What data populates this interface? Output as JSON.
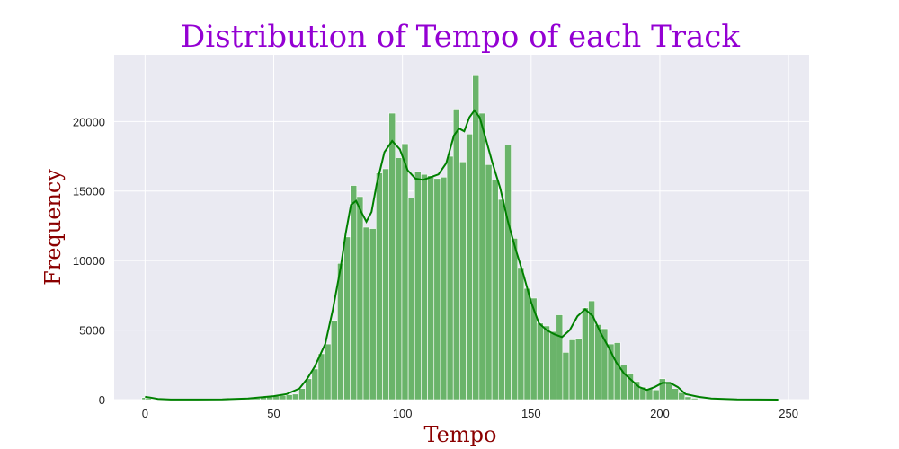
{
  "chart_data": {
    "type": "bar",
    "title": "Distribution of Tempo of each Track",
    "xlabel": "Tempo",
    "ylabel": "Frequency",
    "xlim": [
      -12,
      258
    ],
    "ylim": [
      0,
      24800
    ],
    "xticks": [
      0,
      50,
      100,
      150,
      200,
      250
    ],
    "yticks": [
      0,
      5000,
      10000,
      15000,
      20000
    ],
    "grid": true,
    "background": "#EAEAF2",
    "bar_color": "#6AB46A",
    "line_color": "#008000",
    "bin_width": 2.48,
    "x": [
      0,
      1.24,
      28.5,
      31,
      33.5,
      36,
      38.5,
      41,
      43.5,
      46,
      48.5,
      51,
      53.5,
      56,
      58.5,
      61,
      63.5,
      66,
      68.5,
      71,
      73.5,
      76,
      78.5,
      81,
      83.5,
      86,
      88.5,
      91,
      93.5,
      96,
      98.5,
      101,
      103.5,
      106,
      108.5,
      111,
      113.5,
      116,
      118.5,
      121,
      123.5,
      126,
      128.5,
      131,
      133.5,
      136,
      138.5,
      141,
      143.5,
      146,
      148.5,
      151,
      153.5,
      156,
      158.5,
      161,
      163.5,
      166,
      168.5,
      171,
      173.5,
      176,
      178.5,
      181,
      183.5,
      186,
      188.5,
      191,
      193.5,
      196,
      198.5,
      201,
      203.5,
      206,
      208.5,
      211,
      213.5
    ],
    "values": [
      150,
      100,
      20,
      30,
      50,
      60,
      80,
      90,
      100,
      150,
      200,
      250,
      300,
      350,
      400,
      800,
      1500,
      2200,
      3300,
      4000,
      5700,
      9800,
      11700,
      15400,
      14600,
      12400,
      12300,
      16300,
      16600,
      20600,
      17400,
      18400,
      14500,
      16400,
      16200,
      16100,
      15900,
      16000,
      17500,
      20900,
      17100,
      19100,
      23300,
      20600,
      16900,
      15800,
      14400,
      18300,
      11600,
      9500,
      8000,
      7300,
      5500,
      5300,
      4900,
      6100,
      3400,
      4300,
      4400,
      6600,
      7100,
      5400,
      5100,
      4000,
      4100,
      2500,
      1900,
      1300,
      900,
      800,
      700,
      1500,
      1200,
      800,
      500,
      200,
      100
    ],
    "kde": {
      "x": [
        0,
        2,
        5,
        10,
        20,
        30,
        40,
        50,
        55,
        60,
        63,
        66,
        70,
        73,
        76,
        78,
        80,
        82,
        84,
        86,
        88,
        90,
        93,
        96,
        99,
        102,
        105,
        108,
        111,
        114,
        117,
        120,
        122,
        124,
        126,
        128,
        130,
        132,
        135,
        138,
        141,
        144,
        147,
        150,
        153,
        156,
        159,
        162,
        165,
        168,
        171,
        174,
        177,
        180,
        183,
        186,
        189,
        192,
        195,
        198,
        201,
        204,
        207,
        210,
        215,
        220,
        230,
        246
      ],
      "y": [
        200,
        150,
        50,
        10,
        10,
        20,
        80,
        250,
        400,
        800,
        1500,
        2400,
        4000,
        6500,
        9500,
        12000,
        14000,
        14300,
        13500,
        12800,
        13500,
        15500,
        17800,
        18600,
        18000,
        16500,
        15900,
        15800,
        16000,
        16200,
        17000,
        19000,
        19500,
        19300,
        20300,
        20800,
        20300,
        19000,
        17000,
        15200,
        12800,
        10800,
        9000,
        7000,
        5500,
        5000,
        4700,
        4500,
        5000,
        6000,
        6500,
        6000,
        4800,
        3800,
        2700,
        1900,
        1400,
        900,
        700,
        900,
        1200,
        1200,
        900,
        400,
        200,
        80,
        20,
        0
      ]
    }
  }
}
